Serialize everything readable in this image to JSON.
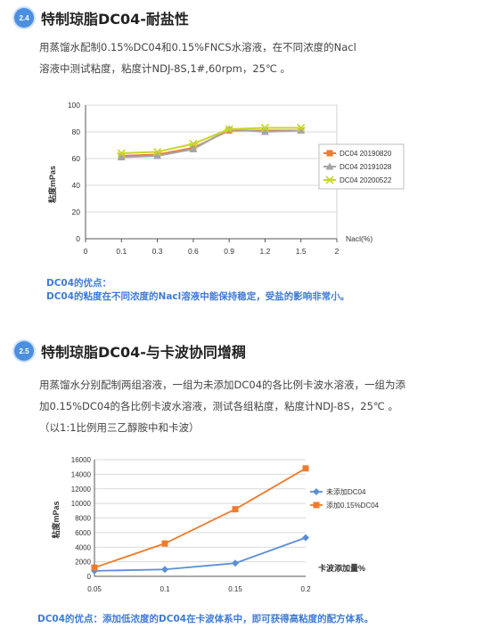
{
  "section1": {
    "badge": "2.4",
    "title": "特制琼脂DC04-耐盐性",
    "lines": [
      "用蒸馏水配制0.15%DC04和0.15%FNCS水溶液，在不同浓度的Nacl",
      "溶液中测试粘度，粘度计NDJ-8S,1#,60rpm，25℃ 。"
    ],
    "note_lines": [
      "DC04的优点：",
      "DC04的粘度在不同浓度的Nacl溶液中能保持稳定，受盐的影响非常小。"
    ]
  },
  "section2": {
    "badge": "2.5",
    "title": "特制琼脂DC04-与卡波协同增稠",
    "lines": [
      "用蒸馏水分别配制两组溶液，一组为未添加DC04的各比例卡波水溶液，一组为添",
      "加0.15%DC04的各比例卡波水溶液，测试各组粘度，粘度计NDJ-8S，25℃ 。",
      "（以1:1比例用三乙醇胺中和卡波）"
    ],
    "note": "DC04的优点：添加低浓度的DC04在卡波体系中，即可获得高粘度的配方体系。"
  },
  "chart_data": [
    {
      "type": "line",
      "title": "",
      "ylabel": "粘度mPas",
      "xlabel": "Nacl(%)",
      "categories": [
        "0",
        "0.1",
        "0.3",
        "0.6",
        "0.9",
        "1.2",
        "1.5",
        "2"
      ],
      "ylim": [
        0,
        100
      ],
      "yticks": [
        0,
        20,
        40,
        60,
        80,
        100
      ],
      "grid": true,
      "legend": "right",
      "series": [
        {
          "name": "DC04 20190820",
          "color": "#f07b2c",
          "marker": "square",
          "values": [
            null,
            62,
            63,
            68,
            81,
            81,
            81,
            null
          ]
        },
        {
          "name": "DC04 20191028",
          "color": "#a6a6a6",
          "marker": "triangle",
          "values": [
            null,
            61,
            62,
            67,
            82,
            80,
            81,
            null
          ]
        },
        {
          "name": "DC04 20200522",
          "color": "#c8d62a",
          "marker": "star",
          "values": [
            null,
            64,
            65,
            71,
            82,
            83,
            83,
            null
          ]
        }
      ]
    },
    {
      "type": "line",
      "title": "",
      "ylabel": "粘度mPas",
      "xlabel": "卡波添加量%",
      "categories": [
        "0.05",
        "0.1",
        "0.15",
        "0.2"
      ],
      "ylim": [
        0,
        16000
      ],
      "yticks": [
        0,
        2000,
        4000,
        6000,
        8000,
        10000,
        12000,
        14000,
        16000
      ],
      "grid": true,
      "legend": "right",
      "series": [
        {
          "name": "未添加DC04",
          "color": "#5b8fd6",
          "marker": "diamond",
          "values": [
            750,
            950,
            1800,
            5300
          ]
        },
        {
          "name": "添加0.15%DC04",
          "color": "#f07b2c",
          "marker": "square",
          "values": [
            1200,
            4500,
            9200,
            14800
          ]
        }
      ]
    }
  ]
}
